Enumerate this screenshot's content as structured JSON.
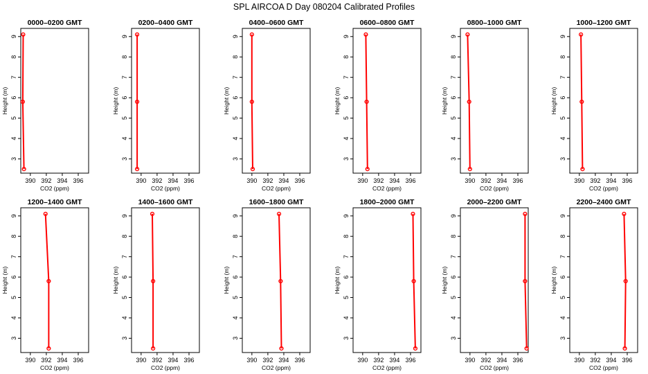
{
  "main_title": "SPL AIRCOA D  Day 080204  Calibrated Profiles",
  "chart_data": [
    {
      "type": "line",
      "title": "0000–0200 GMT",
      "xlabel": "CO2 (ppm)",
      "ylabel": "Height (m)",
      "xlim": [
        388.8,
        397.3
      ],
      "ylim": [
        2.3,
        9.4
      ],
      "xticks": [
        390,
        392,
        394,
        396
      ],
      "yticks": [
        3,
        4,
        5,
        6,
        7,
        8,
        9
      ],
      "series": [
        {
          "x": [
            389.2,
            389.05,
            389.1
          ],
          "y": [
            2.5,
            5.8,
            9.1
          ]
        }
      ],
      "color": "#ff0000"
    },
    {
      "type": "line",
      "title": "0200–0400 GMT",
      "xlabel": "CO2 (ppm)",
      "ylabel": "Height (m)",
      "xlim": [
        388.8,
        397.3
      ],
      "ylim": [
        2.3,
        9.4
      ],
      "xticks": [
        390,
        392,
        394,
        396
      ],
      "yticks": [
        3,
        4,
        5,
        6,
        7,
        8,
        9
      ],
      "series": [
        {
          "x": [
            389.5,
            389.5,
            389.5
          ],
          "y": [
            2.5,
            5.8,
            9.1
          ]
        }
      ],
      "color": "#ff0000"
    },
    {
      "type": "line",
      "title": "0400–0600 GMT",
      "xlabel": "CO2 (ppm)",
      "ylabel": "Height (m)",
      "xlim": [
        388.8,
        397.3
      ],
      "ylim": [
        2.3,
        9.4
      ],
      "xticks": [
        390,
        392,
        394,
        396
      ],
      "yticks": [
        3,
        4,
        5,
        6,
        7,
        8,
        9
      ],
      "series": [
        {
          "x": [
            390.1,
            390.0,
            390.0
          ],
          "y": [
            2.5,
            5.8,
            9.1
          ]
        }
      ],
      "color": "#ff0000"
    },
    {
      "type": "line",
      "title": "0600–0800 GMT",
      "xlabel": "CO2 (ppm)",
      "ylabel": "Height (m)",
      "xlim": [
        388.8,
        397.3
      ],
      "ylim": [
        2.3,
        9.4
      ],
      "xticks": [
        390,
        392,
        394,
        396
      ],
      "yticks": [
        3,
        4,
        5,
        6,
        7,
        8,
        9
      ],
      "series": [
        {
          "x": [
            390.6,
            390.5,
            390.4
          ],
          "y": [
            2.5,
            5.8,
            9.1
          ]
        }
      ],
      "color": "#ff0000"
    },
    {
      "type": "line",
      "title": "0800–1000 GMT",
      "xlabel": "CO2 (ppm)",
      "ylabel": "Height (m)",
      "xlim": [
        388.8,
        397.3
      ],
      "ylim": [
        2.3,
        9.4
      ],
      "xticks": [
        390,
        392,
        394,
        396
      ],
      "yticks": [
        3,
        4,
        5,
        6,
        7,
        8,
        9
      ],
      "series": [
        {
          "x": [
            390.0,
            389.9,
            389.7
          ],
          "y": [
            2.5,
            5.8,
            9.1
          ]
        }
      ],
      "color": "#ff0000"
    },
    {
      "type": "line",
      "title": "1000–1200 GMT",
      "xlabel": "CO2 (ppm)",
      "ylabel": "Height (m)",
      "xlim": [
        388.8,
        397.3
      ],
      "ylim": [
        2.3,
        9.4
      ],
      "xticks": [
        390,
        392,
        394,
        396
      ],
      "yticks": [
        3,
        4,
        5,
        6,
        7,
        8,
        9
      ],
      "series": [
        {
          "x": [
            390.4,
            390.3,
            390.2
          ],
          "y": [
            2.5,
            5.8,
            9.1
          ]
        }
      ],
      "color": "#ff0000"
    },
    {
      "type": "line",
      "title": "1200–1400 GMT",
      "xlabel": "CO2 (ppm)",
      "ylabel": "Height (m)",
      "xlim": [
        388.8,
        397.3
      ],
      "ylim": [
        2.3,
        9.4
      ],
      "xticks": [
        390,
        392,
        394,
        396
      ],
      "yticks": [
        3,
        4,
        5,
        6,
        7,
        8,
        9
      ],
      "series": [
        {
          "x": [
            392.3,
            392.3,
            391.9
          ],
          "y": [
            2.5,
            5.8,
            9.1
          ]
        }
      ],
      "color": "#ff0000"
    },
    {
      "type": "line",
      "title": "1400–1600 GMT",
      "xlabel": "CO2 (ppm)",
      "ylabel": "Height (m)",
      "xlim": [
        388.8,
        397.3
      ],
      "ylim": [
        2.3,
        9.4
      ],
      "xticks": [
        390,
        392,
        394,
        396
      ],
      "yticks": [
        3,
        4,
        5,
        6,
        7,
        8,
        9
      ],
      "series": [
        {
          "x": [
            391.5,
            391.5,
            391.4
          ],
          "y": [
            2.5,
            5.8,
            9.1
          ]
        }
      ],
      "color": "#ff0000"
    },
    {
      "type": "line",
      "title": "1600–1800 GMT",
      "xlabel": "CO2 (ppm)",
      "ylabel": "Height (m)",
      "xlim": [
        388.8,
        397.3
      ],
      "ylim": [
        2.3,
        9.4
      ],
      "xticks": [
        390,
        392,
        394,
        396
      ],
      "yticks": [
        3,
        4,
        5,
        6,
        7,
        8,
        9
      ],
      "series": [
        {
          "x": [
            393.7,
            393.6,
            393.4
          ],
          "y": [
            2.5,
            5.8,
            9.1
          ]
        }
      ],
      "color": "#ff0000"
    },
    {
      "type": "line",
      "title": "1800–2000 GMT",
      "xlabel": "CO2 (ppm)",
      "ylabel": "Height (m)",
      "xlim": [
        388.8,
        397.3
      ],
      "ylim": [
        2.3,
        9.4
      ],
      "xticks": [
        390,
        392,
        394,
        396
      ],
      "yticks": [
        3,
        4,
        5,
        6,
        7,
        8,
        9
      ],
      "series": [
        {
          "x": [
            396.6,
            396.4,
            396.3
          ],
          "y": [
            2.5,
            5.8,
            9.1
          ]
        }
      ],
      "color": "#ff0000"
    },
    {
      "type": "line",
      "title": "2000–2200 GMT",
      "xlabel": "CO2 (ppm)",
      "ylabel": "Height (m)",
      "xlim": [
        388.8,
        397.3
      ],
      "ylim": [
        2.3,
        9.4
      ],
      "xticks": [
        390,
        392,
        394,
        396
      ],
      "yticks": [
        3,
        4,
        5,
        6,
        7,
        8,
        9
      ],
      "series": [
        {
          "x": [
            397.1,
            396.9,
            396.9
          ],
          "y": [
            2.5,
            5.8,
            9.1
          ]
        }
      ],
      "color": "#ff0000"
    },
    {
      "type": "line",
      "title": "2200–2400 GMT",
      "xlabel": "CO2 (ppm)",
      "ylabel": "Height (m)",
      "xlim": [
        388.8,
        397.3
      ],
      "ylim": [
        2.3,
        9.4
      ],
      "xticks": [
        390,
        392,
        394,
        396
      ],
      "yticks": [
        3,
        4,
        5,
        6,
        7,
        8,
        9
      ],
      "series": [
        {
          "x": [
            395.7,
            395.8,
            395.6
          ],
          "y": [
            2.5,
            5.8,
            9.1
          ]
        }
      ],
      "color": "#ff0000"
    }
  ]
}
